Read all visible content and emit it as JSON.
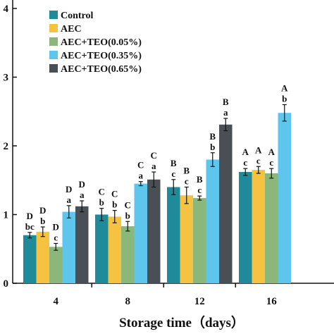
{
  "chart_data": {
    "type": "bar",
    "xlabel": "Storage time（days）",
    "ylabel": "",
    "categories": [
      "4",
      "8",
      "12",
      "16"
    ],
    "ylim": [
      0,
      4
    ],
    "yticks": [
      "4",
      "3",
      "2",
      "1",
      "0"
    ],
    "legend_position": "top-left",
    "series": [
      {
        "name": "Control",
        "color": "#1f8a9a",
        "values": [
          0.7,
          1.0,
          1.4,
          1.62
        ],
        "errors": [
          0.04,
          0.09,
          0.11,
          0.05
        ],
        "labels_upper": [
          "D",
          "C",
          "B",
          "A"
        ],
        "labels_lower": [
          "bc",
          "b",
          "c",
          "c"
        ]
      },
      {
        "name": "AEC",
        "color": "#f5c242",
        "values": [
          0.75,
          0.97,
          1.28,
          1.65
        ],
        "errors": [
          0.07,
          0.09,
          0.12,
          0.05
        ],
        "labels_upper": [
          "D",
          "C",
          "B",
          "A"
        ],
        "labels_lower": [
          "b",
          "b",
          "c",
          "c"
        ]
      },
      {
        "name": "AEC+TEO(0.05%)",
        "color": "#8bb87a",
        "values": [
          0.53,
          0.83,
          1.24,
          1.6
        ],
        "errors": [
          0.05,
          0.07,
          0.03,
          0.07
        ],
        "labels_upper": [
          "D",
          "C",
          "B",
          "A"
        ],
        "labels_lower": [
          "c",
          "b",
          "c",
          "c"
        ]
      },
      {
        "name": "AEC+TEO(0.35%)",
        "color": "#5ec6ec",
        "values": [
          1.04,
          1.45,
          1.8,
          2.48
        ],
        "errors": [
          0.09,
          0.03,
          0.1,
          0.12
        ],
        "labels_upper": [
          "D",
          "C",
          "B",
          "A"
        ],
        "labels_lower": [
          "a",
          "a",
          "b",
          "b"
        ]
      },
      {
        "name": "AEC+TEO(0.65%)",
        "color": "#4a4f55",
        "values": [
          1.12,
          1.51,
          2.31,
          null
        ],
        "errors": [
          0.08,
          0.11,
          0.09,
          null
        ],
        "labels_upper": [
          "D",
          "C",
          "B",
          ""
        ],
        "labels_lower": [
          "a",
          "a",
          "a",
          ""
        ]
      }
    ]
  }
}
